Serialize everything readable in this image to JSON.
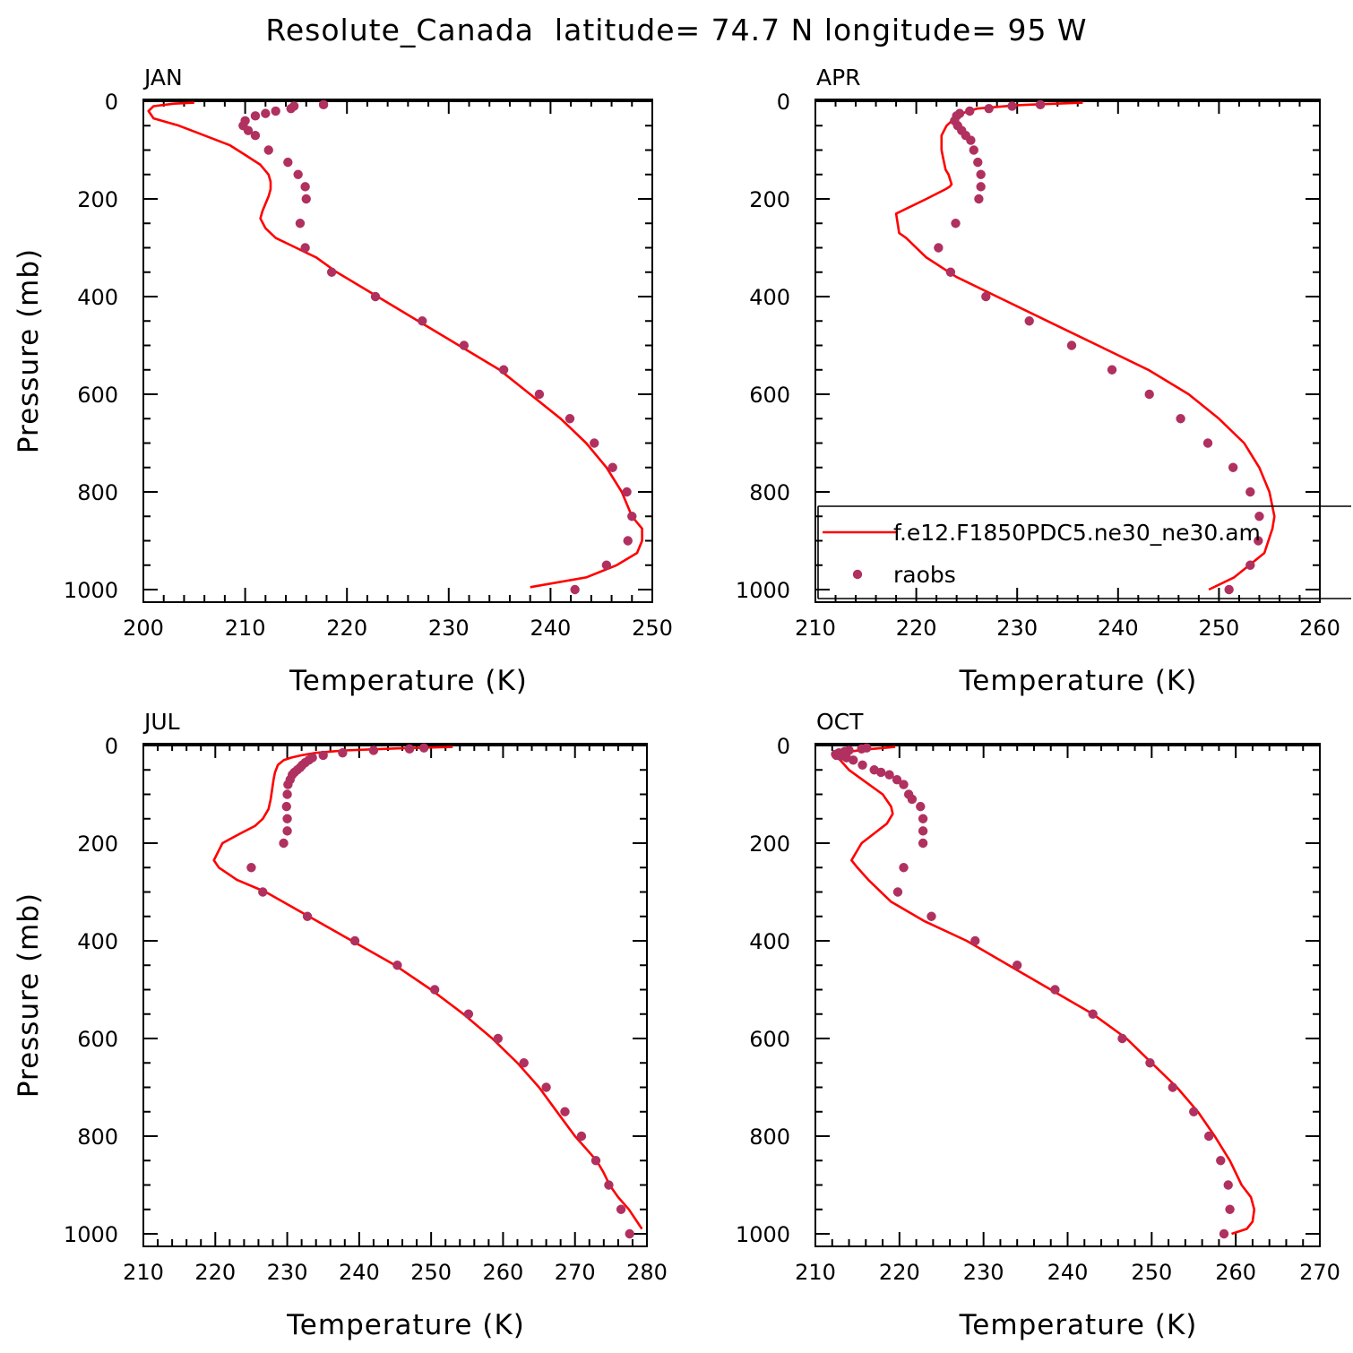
{
  "title": "Resolute_Canada  latitude= 74.7 N longitude= 95 W",
  "colors": {
    "model": "#ff0000",
    "obs": "#b03060"
  },
  "legend": {
    "panel": 1,
    "model_label": "f.e12.F1850PDC5.ne30_ne30.am",
    "obs_label": "raobs"
  },
  "chart_data": [
    {
      "type": "line",
      "panel_label": "JAN",
      "xlabel": "Temperature (K)",
      "ylabel": "Pressure (mb)",
      "xlim": [
        200,
        250
      ],
      "ylim": [
        1000,
        0
      ],
      "yaxis_inverted": true,
      "xticks": [
        200,
        210,
        220,
        230,
        240,
        250
      ],
      "yticks": [
        0,
        200,
        400,
        600,
        800,
        1000
      ],
      "series": [
        {
          "name": "f.e12.F1850PDC5.ne30_ne30.am",
          "kind": "line",
          "x": [
            205,
            203,
            201,
            200.5,
            201,
            203.5,
            206,
            208.5,
            210,
            211.5,
            212.3,
            212.5,
            212.5,
            212.3,
            212,
            211.7,
            211.5,
            212,
            213,
            215,
            217,
            219,
            223,
            227,
            231,
            235,
            238,
            241,
            243.5,
            245.5,
            247,
            248,
            249,
            249,
            248.5,
            246.5,
            243.5,
            238
          ],
          "y": [
            3,
            5,
            10,
            20,
            35,
            50,
            70,
            90,
            110,
            130,
            150,
            165,
            180,
            195,
            210,
            225,
            240,
            260,
            280,
            300,
            320,
            350,
            400,
            450,
            500,
            550,
            600,
            650,
            700,
            750,
            800,
            850,
            875,
            900,
            925,
            950,
            975,
            995
          ]
        },
        {
          "name": "raobs",
          "kind": "scatter",
          "x": [
            217.7,
            214.8,
            214.5,
            213,
            212,
            211,
            210,
            209.8,
            210.3,
            211,
            212.3,
            214.2,
            215.2,
            215.9,
            216,
            215.4,
            215.9,
            218.5,
            222.8,
            227.4,
            231.5,
            235.4,
            238.9,
            241.9,
            244.3,
            246.1,
            247.5,
            248,
            247.6,
            245.5,
            242.4
          ],
          "y": [
            7,
            10,
            15,
            20,
            25,
            30,
            40,
            50,
            60,
            70,
            100,
            125,
            150,
            175,
            200,
            250,
            300,
            350,
            400,
            450,
            500,
            550,
            600,
            650,
            700,
            750,
            800,
            850,
            900,
            950,
            1000
          ]
        }
      ]
    },
    {
      "type": "line",
      "panel_label": "APR",
      "xlabel": "Temperature (K)",
      "ylabel": "",
      "xlim": [
        210,
        260
      ],
      "ylim": [
        1000,
        0
      ],
      "yaxis_inverted": true,
      "xticks": [
        210,
        220,
        230,
        240,
        250,
        260
      ],
      "yticks": [
        0,
        200,
        400,
        600,
        800,
        1000
      ],
      "series": [
        {
          "name": "f.e12.F1850PDC5.ne30_ne30.am",
          "kind": "line",
          "x": [
            236.5,
            230,
            226,
            224.5,
            223.8,
            223,
            222.5,
            222.5,
            222.7,
            222.9,
            223.2,
            223.5,
            223.3,
            222.9,
            221,
            218,
            218.3,
            219,
            221,
            224,
            228,
            233,
            238,
            243,
            247,
            250,
            252.5,
            254,
            255,
            255.5,
            255.3,
            254.5,
            253,
            251.5,
            249
          ],
          "y": [
            3,
            8,
            15,
            25,
            35,
            50,
            70,
            100,
            120,
            140,
            150,
            170,
            175,
            180,
            200,
            230,
            270,
            280,
            320,
            360,
            400,
            450,
            500,
            550,
            600,
            650,
            700,
            750,
            800,
            850,
            875,
            925,
            950,
            975,
            1000
          ]
        },
        {
          "name": "raobs",
          "kind": "scatter",
          "x": [
            232.3,
            229.5,
            227.2,
            225.3,
            224.3,
            224,
            223.8,
            224.1,
            224.5,
            224.9,
            225.4,
            225.7,
            226.1,
            226.4,
            226.4,
            226.2,
            223.9,
            222.2,
            223.4,
            226.9,
            231.2,
            235.4,
            239.4,
            243.1,
            246.2,
            248.9,
            251.4,
            253.1,
            254,
            253.9,
            253.1,
            251
          ],
          "y": [
            7,
            10,
            15,
            20,
            25,
            30,
            40,
            50,
            60,
            70,
            80,
            100,
            125,
            150,
            175,
            200,
            250,
            300,
            350,
            400,
            450,
            500,
            550,
            600,
            650,
            700,
            750,
            800,
            850,
            900,
            950,
            1000
          ]
        }
      ]
    },
    {
      "type": "line",
      "panel_label": "JUL",
      "xlabel": "Temperature (K)",
      "ylabel": "Pressure (mb)",
      "xlim": [
        210,
        280
      ],
      "ylim": [
        1000,
        0
      ],
      "yaxis_inverted": true,
      "xticks": [
        210,
        220,
        230,
        240,
        250,
        260,
        270,
        280
      ],
      "yticks": [
        0,
        200,
        400,
        600,
        800,
        1000
      ],
      "series": [
        {
          "name": "f.e12.F1850PDC5.ne30_ne30.am",
          "kind": "line",
          "x": [
            253,
            245,
            238,
            234,
            232,
            230.5,
            229.5,
            228.7,
            228.3,
            228.1,
            227.9,
            227.7,
            227.4,
            227,
            226.6,
            225.5,
            223.5,
            221,
            219.8,
            220.5,
            223,
            227,
            233,
            239,
            245,
            250,
            254.5,
            258.5,
            262,
            265,
            267.5,
            270,
            271.5,
            273,
            274,
            274.8,
            276,
            277.5,
            279.3
          ],
          "y": [
            3,
            6,
            10,
            15,
            20,
            25,
            30,
            40,
            55,
            70,
            90,
            110,
            130,
            140,
            150,
            165,
            180,
            200,
            235,
            250,
            275,
            300,
            350,
            400,
            450,
            500,
            550,
            600,
            650,
            700,
            750,
            800,
            825,
            850,
            875,
            900,
            925,
            950,
            990
          ]
        },
        {
          "name": "raobs",
          "kind": "scatter",
          "x": [
            249,
            247,
            242,
            237.7,
            235,
            233.5,
            233,
            232.5,
            232.1,
            231.8,
            231.4,
            231,
            230.7,
            230.4,
            230.1,
            230,
            229.9,
            230,
            230,
            229.5,
            225,
            226.6,
            232.8,
            239.4,
            245.3,
            250.5,
            255.2,
            259.3,
            262.9,
            266,
            268.6,
            270.9,
            272.9,
            274.7,
            276.4,
            277.6
          ],
          "y": [
            5,
            7,
            10,
            15,
            20,
            25,
            30,
            35,
            40,
            45,
            50,
            55,
            60,
            70,
            80,
            100,
            125,
            150,
            175,
            200,
            250,
            300,
            350,
            400,
            450,
            500,
            550,
            600,
            650,
            700,
            750,
            800,
            850,
            900,
            950,
            1000
          ]
        }
      ]
    },
    {
      "type": "line",
      "panel_label": "OCT",
      "xlabel": "Temperature (K)",
      "ylabel": "",
      "xlim": [
        210,
        270
      ],
      "ylim": [
        1000,
        0
      ],
      "yaxis_inverted": true,
      "xticks": [
        210,
        220,
        230,
        240,
        250,
        260,
        270
      ],
      "yticks": [
        0,
        200,
        400,
        600,
        800,
        1000
      ],
      "series": [
        {
          "name": "f.e12.F1850PDC5.ne30_ne30.am",
          "kind": "line",
          "x": [
            219.5,
            216,
            213,
            212.7,
            214,
            216,
            218,
            219,
            219.2,
            218.5,
            217,
            215.5,
            214.3,
            215,
            216.3,
            219,
            223,
            228,
            233,
            238,
            243,
            247,
            250,
            253,
            255.5,
            257.5,
            259.3,
            260.7,
            261.8,
            262.2,
            262,
            261.3,
            259.5
          ],
          "y": [
            3,
            8,
            15,
            25,
            50,
            75,
            100,
            125,
            140,
            160,
            180,
            200,
            235,
            250,
            275,
            320,
            360,
            400,
            450,
            500,
            550,
            600,
            650,
            700,
            750,
            800,
            850,
            900,
            925,
            950,
            975,
            990,
            1000
          ]
        },
        {
          "name": "raobs",
          "kind": "scatter",
          "x": [
            216.1,
            215.5,
            214,
            213.5,
            212.8,
            212.4,
            212.5,
            213,
            213.7,
            214.5,
            215.6,
            217,
            217.8,
            218.8,
            219.7,
            220.5,
            221.1,
            221.5,
            222.5,
            222.8,
            222.8,
            222.8,
            220.5,
            219.8,
            223.8,
            229,
            234,
            238.5,
            243,
            246.5,
            249.8,
            252.5,
            255,
            256.8,
            258.2,
            259.1,
            259.3,
            258.6
          ],
          "y": [
            5,
            7,
            10,
            12,
            15,
            18,
            20,
            22,
            25,
            30,
            40,
            50,
            55,
            60,
            70,
            80,
            100,
            110,
            125,
            150,
            175,
            200,
            250,
            300,
            350,
            400,
            450,
            500,
            550,
            600,
            650,
            700,
            750,
            800,
            850,
            900,
            950,
            1000
          ]
        }
      ]
    }
  ]
}
